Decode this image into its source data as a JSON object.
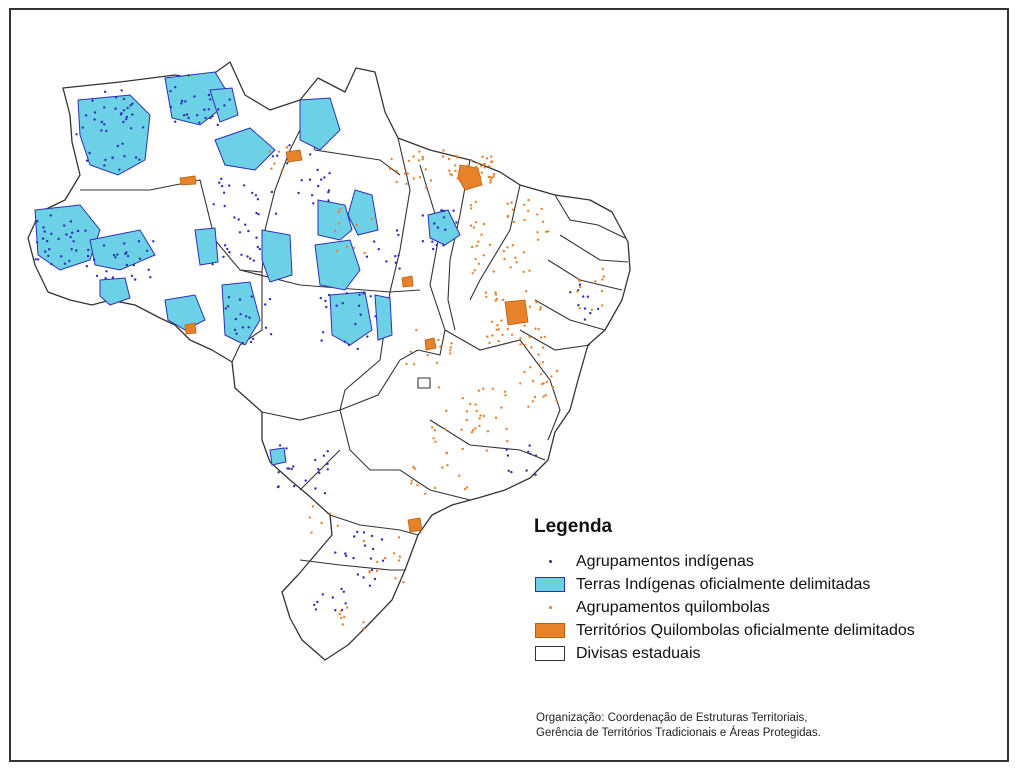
{
  "legend": {
    "title": "Legenda",
    "items": [
      {
        "label": "Agrupamentos indígenas",
        "symbol": "dot",
        "color": "#2d2fb2"
      },
      {
        "label": "Terras Indígenas oficialmente delimitadas",
        "symbol": "box",
        "color": "#6cd0e6",
        "border": "#2d2fb2"
      },
      {
        "label": "Agrupamentos quilombolas",
        "symbol": "dot",
        "color": "#e8822a"
      },
      {
        "label": "Territórios  Quilombolas oficialmente delimitados",
        "symbol": "box",
        "color": "#e8822a",
        "border": "#b8600f"
      },
      {
        "label": "Divisas estaduais",
        "symbol": "box",
        "color": "#ffffff",
        "border": "#333333"
      }
    ]
  },
  "credits": {
    "line1": "Organização: Coordenação de Estruturas Territoriais,",
    "line2": "Gerência de Territórios Tradicionais e Áreas Protegidas."
  },
  "colors": {
    "indigenous": "#2d2fb2",
    "indigenous_land": "#6cd0e6",
    "quilombola": "#e8822a",
    "border": "#333333"
  }
}
